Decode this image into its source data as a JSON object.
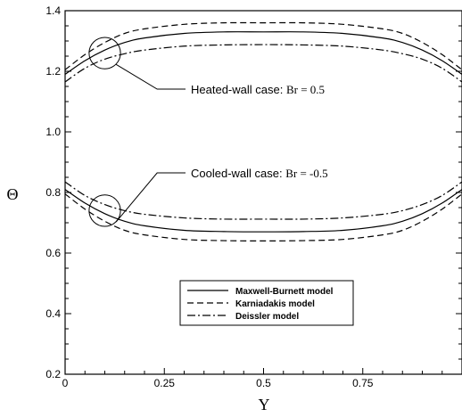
{
  "chart_data": {
    "type": "line",
    "xlabel": "Y",
    "ylabel": "Θ",
    "xlim": [
      0,
      1
    ],
    "ylim": [
      0.2,
      1.4
    ],
    "xticks": [
      0,
      0.25,
      0.5,
      0.75
    ],
    "xtick_labels": [
      "0",
      "0.25",
      "0.5",
      "0.75"
    ],
    "yticks": [
      0.2,
      0.4,
      0.6,
      0.8,
      1.0,
      1.2,
      1.4
    ],
    "ytick_labels": [
      "0.2",
      "0.4",
      "0.6",
      "0.8",
      "1.0",
      "1.2",
      "1.4"
    ],
    "grid": false,
    "legend_position": "lower-center",
    "series": [
      {
        "name": "Maxwell-Burnett model",
        "style": "solid",
        "case": "heated",
        "x": [
          0,
          0.05,
          0.1,
          0.15,
          0.2,
          0.3,
          0.4,
          0.5,
          0.6,
          0.7,
          0.8,
          0.85,
          0.9,
          0.95,
          1.0
        ],
        "y": [
          1.19,
          1.235,
          1.27,
          1.295,
          1.31,
          1.325,
          1.33,
          1.33,
          1.33,
          1.325,
          1.31,
          1.295,
          1.27,
          1.235,
          1.19
        ]
      },
      {
        "name": "Karniadakis model",
        "style": "dashed",
        "case": "heated",
        "x": [
          0,
          0.05,
          0.1,
          0.15,
          0.2,
          0.3,
          0.4,
          0.5,
          0.6,
          0.7,
          0.8,
          0.85,
          0.9,
          0.95,
          1.0
        ],
        "y": [
          1.205,
          1.255,
          1.295,
          1.325,
          1.34,
          1.355,
          1.36,
          1.36,
          1.36,
          1.355,
          1.34,
          1.325,
          1.295,
          1.255,
          1.205
        ]
      },
      {
        "name": "Deissler model",
        "style": "dashdot",
        "case": "heated",
        "x": [
          0,
          0.05,
          0.1,
          0.15,
          0.2,
          0.3,
          0.4,
          0.5,
          0.6,
          0.7,
          0.8,
          0.85,
          0.9,
          0.95,
          1.0
        ],
        "y": [
          1.165,
          1.21,
          1.24,
          1.258,
          1.27,
          1.283,
          1.287,
          1.288,
          1.287,
          1.283,
          1.27,
          1.258,
          1.24,
          1.21,
          1.165
        ]
      },
      {
        "name": "Maxwell-Burnett model",
        "style": "solid",
        "case": "cooled",
        "x": [
          0,
          0.05,
          0.1,
          0.15,
          0.2,
          0.3,
          0.4,
          0.5,
          0.6,
          0.7,
          0.8,
          0.85,
          0.9,
          0.95,
          1.0
        ],
        "y": [
          0.81,
          0.765,
          0.73,
          0.705,
          0.69,
          0.675,
          0.671,
          0.67,
          0.671,
          0.675,
          0.69,
          0.705,
          0.73,
          0.765,
          0.81
        ]
      },
      {
        "name": "Karniadakis model",
        "style": "dashed",
        "case": "cooled",
        "x": [
          0,
          0.05,
          0.1,
          0.15,
          0.2,
          0.3,
          0.4,
          0.5,
          0.6,
          0.7,
          0.8,
          0.85,
          0.9,
          0.95,
          1.0
        ],
        "y": [
          0.795,
          0.745,
          0.705,
          0.675,
          0.66,
          0.645,
          0.641,
          0.64,
          0.641,
          0.645,
          0.66,
          0.675,
          0.705,
          0.745,
          0.795
        ]
      },
      {
        "name": "Deissler model",
        "style": "dashdot",
        "case": "cooled",
        "x": [
          0,
          0.05,
          0.1,
          0.15,
          0.2,
          0.3,
          0.4,
          0.5,
          0.6,
          0.7,
          0.8,
          0.85,
          0.9,
          0.95,
          1.0
        ],
        "y": [
          0.835,
          0.79,
          0.76,
          0.74,
          0.728,
          0.716,
          0.712,
          0.712,
          0.712,
          0.716,
          0.728,
          0.74,
          0.76,
          0.79,
          0.835
        ]
      }
    ],
    "annotations": [
      {
        "prefix": "Heated-wall case: ",
        "br": "Br = 0.5",
        "circle_center": [
          0.1,
          1.26
        ],
        "circle_radius": 0.055
      },
      {
        "prefix": "Cooled-wall case: ",
        "br": "Br = -0.5",
        "circle_center": [
          0.1,
          0.74
        ],
        "circle_radius": 0.055
      }
    ],
    "legend": [
      {
        "label": "Maxwell-Burnett model",
        "style": "solid"
      },
      {
        "label": "Karniadakis model",
        "style": "dashed"
      },
      {
        "label": "Deissler model",
        "style": "dashdot"
      }
    ]
  }
}
